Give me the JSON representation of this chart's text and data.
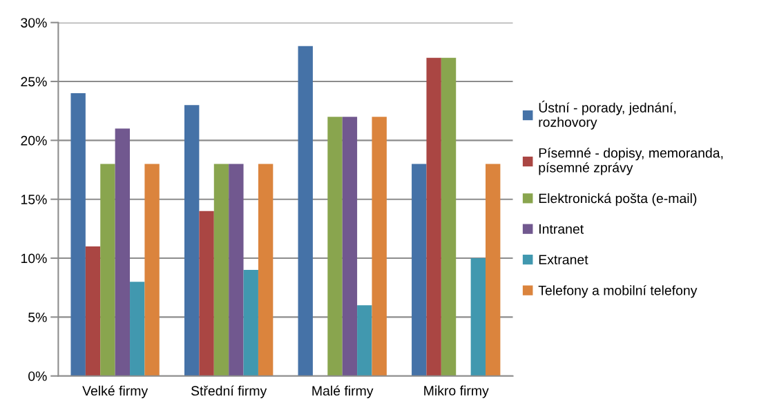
{
  "chart_data": {
    "type": "bar",
    "categories": [
      "Velké firmy",
      "Střední firmy",
      "Malé firmy",
      "Mikro firmy"
    ],
    "series": [
      {
        "name": "Ústní - porady, jednání,\nrozhovory",
        "color": "#4572a7",
        "values": [
          24,
          23,
          28,
          18
        ]
      },
      {
        "name": "Písemné - dopisy, memoranda,\npísemné zprávy",
        "color": "#aa4643",
        "values": [
          11,
          14,
          0,
          27
        ]
      },
      {
        "name": "Elektronická pošta (e-mail)",
        "color": "#89a54e",
        "values": [
          18,
          18,
          22,
          27
        ]
      },
      {
        "name": "Intranet",
        "color": "#71588f",
        "values": [
          21,
          18,
          22,
          0
        ]
      },
      {
        "name": "Extranet",
        "color": "#4198af",
        "values": [
          8,
          9,
          6,
          10
        ]
      },
      {
        "name": "Telefony a mobilní telefony",
        "color": "#db843d",
        "values": [
          18,
          18,
          22,
          18
        ]
      }
    ],
    "ylim": [
      0,
      30
    ],
    "yticks": [
      {
        "value": 0,
        "label": "0%"
      },
      {
        "value": 5,
        "label": "5%"
      },
      {
        "value": 10,
        "label": "10%"
      },
      {
        "value": 15,
        "label": "15%"
      },
      {
        "value": 20,
        "label": "20%"
      },
      {
        "value": 25,
        "label": "25%"
      },
      {
        "value": 30,
        "label": "30%"
      }
    ],
    "grid": "y",
    "legend": "right"
  }
}
